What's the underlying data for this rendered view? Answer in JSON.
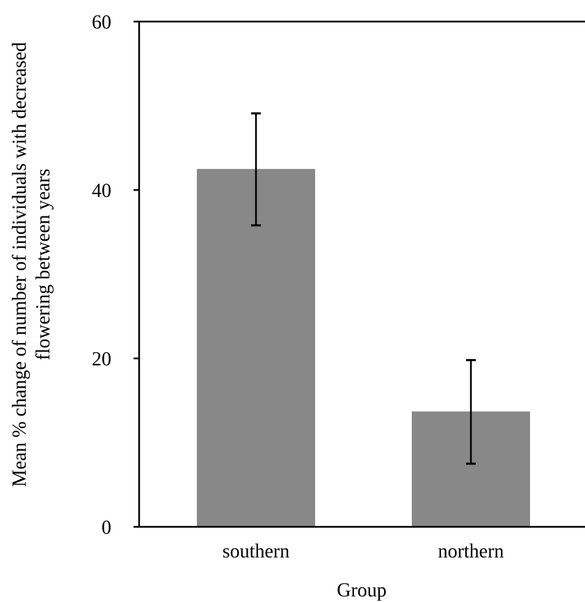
{
  "chart_data": {
    "type": "bar",
    "title": "",
    "xlabel": "Group",
    "ylabel_lines": [
      "Mean % change of number of individuals with decreased",
      "flowering between years"
    ],
    "categories": [
      "southern",
      "northern"
    ],
    "values": [
      42.5,
      13.7
    ],
    "error_upper": [
      49.1,
      19.8
    ],
    "error_lower": [
      35.8,
      7.5
    ],
    "ylim": [
      0,
      60
    ],
    "yticks": [
      0,
      20,
      40,
      60
    ],
    "ytick_labels": [
      "0",
      "20",
      "40",
      "60"
    ],
    "bar_color": "#878887",
    "axis_color": "#000000",
    "grid": false,
    "legend": "none"
  }
}
